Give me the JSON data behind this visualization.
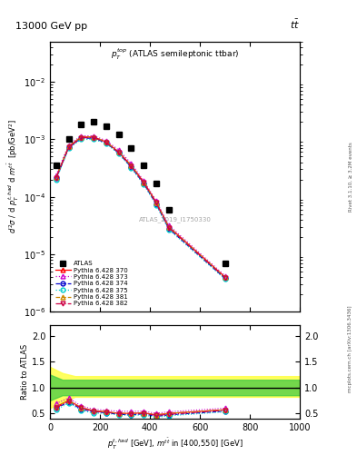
{
  "title_left": "13000 GeV pp",
  "title_right": "tt",
  "subtitle": "$p_T^{top}$ (ATLAS semileptonic ttbar)",
  "watermark": "ATLAS_2019_I1750330",
  "ylabel_main": "$d^2\\sigma$ / d $p_T^{t,had}$ d $m^{t\\bar{t}}$  [pb/GeV$^2$]",
  "ylabel_ratio": "Ratio to ATLAS",
  "xlabel": "$p_T^{t,had}$ [GeV], $m^{t\\bar{t}}$ in [400,550] [GeV]",
  "atlas_x": [
    25,
    75,
    125,
    175,
    225,
    275,
    325,
    375,
    425,
    475,
    700
  ],
  "atlas_y": [
    0.00035,
    0.001,
    0.0018,
    0.002,
    0.0017,
    0.0012,
    0.0007,
    0.00035,
    0.00017,
    6e-05,
    7e-06
  ],
  "py370_x": [
    25,
    75,
    125,
    175,
    225,
    275,
    325,
    375,
    425,
    475,
    700
  ],
  "py370_y": [
    0.00022,
    0.00075,
    0.0011,
    0.0011,
    0.0009,
    0.0006,
    0.00035,
    0.00018,
    8e-05,
    3e-05,
    4e-06
  ],
  "py373_x": [
    25,
    75,
    125,
    175,
    225,
    275,
    325,
    375,
    425,
    475,
    700
  ],
  "py373_y": [
    0.00024,
    0.0008,
    0.00115,
    0.00115,
    0.00095,
    0.00065,
    0.00038,
    0.00019,
    8.5e-05,
    3.2e-05,
    4.2e-06
  ],
  "py374_x": [
    25,
    75,
    125,
    175,
    225,
    275,
    325,
    375,
    425,
    475,
    700
  ],
  "py374_y": [
    0.00021,
    0.00072,
    0.00105,
    0.00105,
    0.00087,
    0.00058,
    0.00033,
    0.00017,
    7.5e-05,
    2.8e-05,
    3.8e-06
  ],
  "py375_x": [
    25,
    75,
    125,
    175,
    225,
    275,
    325,
    375,
    425,
    475,
    700
  ],
  "py375_y": [
    0.0002,
    0.0007,
    0.001,
    0.001,
    0.00085,
    0.00056,
    0.00032,
    0.000165,
    7.2e-05,
    2.7e-05,
    3.7e-06
  ],
  "py381_x": [
    25,
    75,
    125,
    175,
    225,
    275,
    325,
    375,
    425,
    475,
    700
  ],
  "py381_y": [
    0.00022,
    0.00075,
    0.0011,
    0.0011,
    0.0009,
    0.0006,
    0.00035,
    0.00018,
    8e-05,
    3e-05,
    4e-06
  ],
  "py382_x": [
    25,
    75,
    125,
    175,
    225,
    275,
    325,
    375,
    425,
    475,
    700
  ],
  "py382_y": [
    0.000215,
    0.00073,
    0.00107,
    0.00107,
    0.00088,
    0.00059,
    0.00034,
    0.000175,
    7.8e-05,
    2.9e-05,
    3.9e-06
  ],
  "band_x": [
    0,
    50,
    100,
    200,
    1000
  ],
  "band_green_lo": [
    0.75,
    0.85,
    0.85,
    0.85,
    0.85
  ],
  "band_green_hi": [
    1.25,
    1.15,
    1.15,
    1.15,
    1.15
  ],
  "band_yellow_lo": [
    0.6,
    0.72,
    0.82,
    0.82,
    0.82
  ],
  "band_yellow_hi": [
    1.4,
    1.28,
    1.22,
    1.22,
    1.22
  ],
  "ratio_py370": [
    0.63,
    0.75,
    0.61,
    0.55,
    0.53,
    0.5,
    0.5,
    0.51,
    0.47,
    0.5,
    0.57
  ],
  "ratio_py373": [
    0.69,
    0.8,
    0.64,
    0.58,
    0.56,
    0.54,
    0.54,
    0.54,
    0.5,
    0.53,
    0.6
  ],
  "ratio_py374": [
    0.6,
    0.72,
    0.58,
    0.53,
    0.51,
    0.48,
    0.47,
    0.49,
    0.44,
    0.47,
    0.54
  ],
  "ratio_py375": [
    0.57,
    0.7,
    0.56,
    0.5,
    0.5,
    0.47,
    0.46,
    0.47,
    0.42,
    0.45,
    0.53
  ],
  "ratio_py381": [
    0.63,
    0.75,
    0.61,
    0.55,
    0.53,
    0.5,
    0.5,
    0.51,
    0.47,
    0.5,
    0.57
  ],
  "ratio_py382": [
    0.61,
    0.73,
    0.6,
    0.54,
    0.52,
    0.49,
    0.49,
    0.5,
    0.46,
    0.48,
    0.56
  ],
  "color_370": "#ff0000",
  "color_373": "#cc00cc",
  "color_374": "#0000cc",
  "color_375": "#00cccc",
  "color_381": "#cc8800",
  "color_382": "#cc0044",
  "xlim": [
    0,
    1000
  ],
  "ylim_main": [
    1e-06,
    0.05
  ],
  "ylim_ratio": [
    0.4,
    2.2
  ],
  "ratio_yticks": [
    0.5,
    1.0,
    1.5,
    2.0
  ]
}
